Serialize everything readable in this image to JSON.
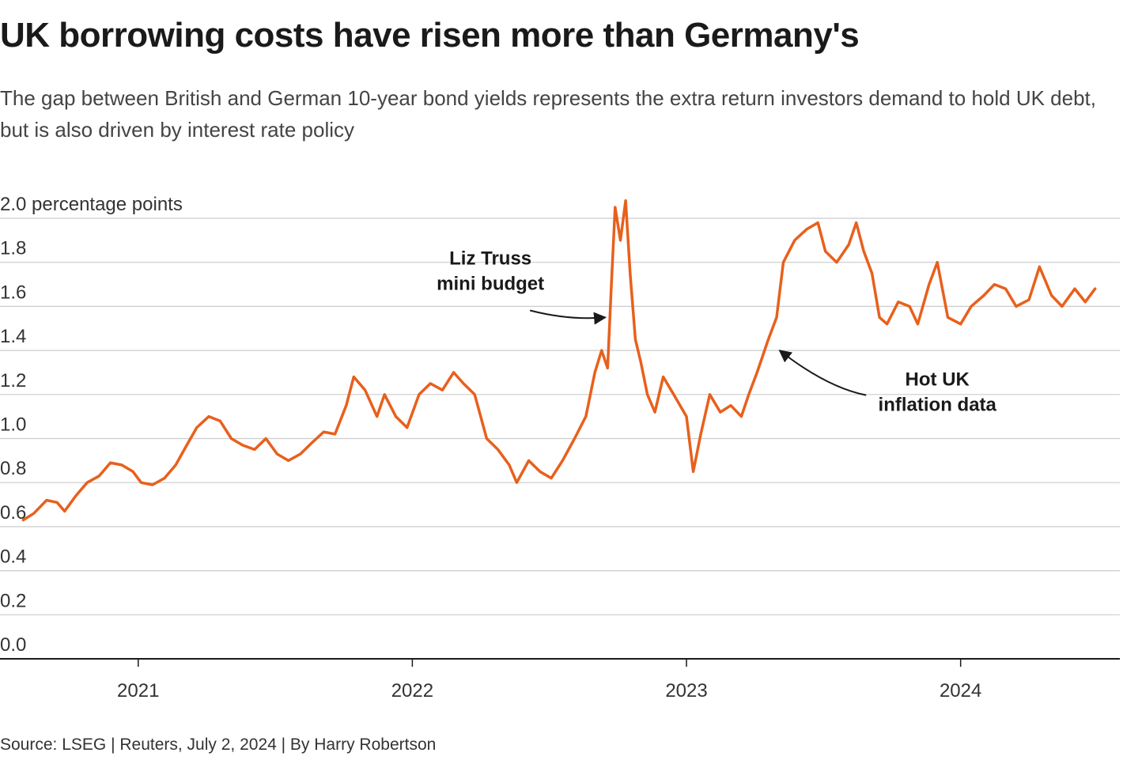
{
  "header": {
    "title": "UK borrowing costs have risen more than Germany's",
    "subtitle": "The gap between British and German 10-year bond yields represents the extra return investors demand to hold UK debt, but is also driven by interest rate policy"
  },
  "footer": {
    "source": "Source: LSEG | Reuters, July 2, 2024 | By Harry Robertson"
  },
  "colors": {
    "line": "#e8601c",
    "grid": "#cccccc",
    "axis": "#1a1a1a"
  },
  "chart_data": {
    "type": "line",
    "title": "UK borrowing costs have risen more than Germany's",
    "ylabel": "percentage points",
    "ylim": [
      0,
      2.0
    ],
    "yticks": [
      0,
      0.2,
      0.4,
      0.6,
      0.8,
      1.0,
      1.2,
      1.4,
      1.6,
      1.8,
      2.0
    ],
    "ytick_labels": [
      "0.0",
      "0.2",
      "0.4",
      "0.6",
      "0.8",
      "1.0",
      "1.2",
      "1.4",
      "1.6",
      "1.8",
      "2.0 percentage points"
    ],
    "xlim": [
      "2020-07-01",
      "2024-07-31"
    ],
    "xticks": [
      "2021-01-01",
      "2022-01-01",
      "2023-01-01",
      "2024-01-01"
    ],
    "xtick_labels": [
      "2021",
      "2022",
      "2023",
      "2024"
    ],
    "grid": true,
    "series": [
      {
        "name": "",
        "points": [
          [
            "2020-08-01",
            0.63
          ],
          [
            "2020-08-15",
            0.66
          ],
          [
            "2020-09-01",
            0.72
          ],
          [
            "2020-09-15",
            0.71
          ],
          [
            "2020-09-25",
            0.67
          ],
          [
            "2020-10-10",
            0.74
          ],
          [
            "2020-10-25",
            0.8
          ],
          [
            "2020-11-10",
            0.83
          ],
          [
            "2020-11-25",
            0.89
          ],
          [
            "2020-12-10",
            0.88
          ],
          [
            "2020-12-25",
            0.85
          ],
          [
            "2021-01-05",
            0.8
          ],
          [
            "2021-01-20",
            0.79
          ],
          [
            "2021-02-05",
            0.82
          ],
          [
            "2021-02-20",
            0.88
          ],
          [
            "2021-03-05",
            0.96
          ],
          [
            "2021-03-20",
            1.05
          ],
          [
            "2021-04-05",
            1.1
          ],
          [
            "2021-04-20",
            1.08
          ],
          [
            "2021-05-05",
            1.0
          ],
          [
            "2021-05-20",
            0.97
          ],
          [
            "2021-06-05",
            0.95
          ],
          [
            "2021-06-20",
            1.0
          ],
          [
            "2021-07-05",
            0.93
          ],
          [
            "2021-07-20",
            0.9
          ],
          [
            "2021-08-05",
            0.93
          ],
          [
            "2021-08-20",
            0.98
          ],
          [
            "2021-09-05",
            1.03
          ],
          [
            "2021-09-20",
            1.02
          ],
          [
            "2021-10-05",
            1.15
          ],
          [
            "2021-10-15",
            1.28
          ],
          [
            "2021-10-30",
            1.22
          ],
          [
            "2021-11-15",
            1.1
          ],
          [
            "2021-11-25",
            1.2
          ],
          [
            "2021-12-10",
            1.1
          ],
          [
            "2021-12-25",
            1.05
          ],
          [
            "2022-01-10",
            1.2
          ],
          [
            "2022-01-25",
            1.25
          ],
          [
            "2022-02-10",
            1.22
          ],
          [
            "2022-02-25",
            1.3
          ],
          [
            "2022-03-10",
            1.25
          ],
          [
            "2022-03-25",
            1.2
          ],
          [
            "2022-04-10",
            1.0
          ],
          [
            "2022-04-25",
            0.95
          ],
          [
            "2022-05-10",
            0.88
          ],
          [
            "2022-05-20",
            0.8
          ],
          [
            "2022-06-05",
            0.9
          ],
          [
            "2022-06-20",
            0.85
          ],
          [
            "2022-07-05",
            0.82
          ],
          [
            "2022-07-20",
            0.9
          ],
          [
            "2022-08-05",
            1.0
          ],
          [
            "2022-08-20",
            1.1
          ],
          [
            "2022-09-01",
            1.3
          ],
          [
            "2022-09-10",
            1.4
          ],
          [
            "2022-09-18",
            1.32
          ],
          [
            "2022-09-23",
            1.7
          ],
          [
            "2022-09-28",
            2.05
          ],
          [
            "2022-10-05",
            1.9
          ],
          [
            "2022-10-12",
            2.08
          ],
          [
            "2022-10-18",
            1.75
          ],
          [
            "2022-10-25",
            1.45
          ],
          [
            "2022-11-01",
            1.35
          ],
          [
            "2022-11-10",
            1.2
          ],
          [
            "2022-11-20",
            1.12
          ],
          [
            "2022-12-01",
            1.28
          ],
          [
            "2022-12-15",
            1.2
          ],
          [
            "2023-01-01",
            1.1
          ],
          [
            "2023-01-10",
            0.85
          ],
          [
            "2023-01-20",
            1.02
          ],
          [
            "2023-02-01",
            1.2
          ],
          [
            "2023-02-15",
            1.12
          ],
          [
            "2023-03-01",
            1.15
          ],
          [
            "2023-03-15",
            1.1
          ],
          [
            "2023-03-25",
            1.2
          ],
          [
            "2023-04-05",
            1.3
          ],
          [
            "2023-04-20",
            1.45
          ],
          [
            "2023-05-01",
            1.55
          ],
          [
            "2023-05-10",
            1.8
          ],
          [
            "2023-05-25",
            1.9
          ],
          [
            "2023-06-10",
            1.95
          ],
          [
            "2023-06-25",
            1.98
          ],
          [
            "2023-07-05",
            1.85
          ],
          [
            "2023-07-20",
            1.8
          ],
          [
            "2023-08-05",
            1.88
          ],
          [
            "2023-08-15",
            1.98
          ],
          [
            "2023-08-25",
            1.85
          ],
          [
            "2023-09-05",
            1.75
          ],
          [
            "2023-09-15",
            1.55
          ],
          [
            "2023-09-25",
            1.52
          ],
          [
            "2023-10-10",
            1.62
          ],
          [
            "2023-10-25",
            1.6
          ],
          [
            "2023-11-05",
            1.52
          ],
          [
            "2023-11-20",
            1.7
          ],
          [
            "2023-12-01",
            1.8
          ],
          [
            "2023-12-15",
            1.55
          ],
          [
            "2024-01-01",
            1.52
          ],
          [
            "2024-01-15",
            1.6
          ],
          [
            "2024-02-01",
            1.65
          ],
          [
            "2024-02-15",
            1.7
          ],
          [
            "2024-03-01",
            1.68
          ],
          [
            "2024-03-15",
            1.6
          ],
          [
            "2024-04-01",
            1.63
          ],
          [
            "2024-04-15",
            1.78
          ],
          [
            "2024-05-01",
            1.65
          ],
          [
            "2024-05-15",
            1.6
          ],
          [
            "2024-06-01",
            1.68
          ],
          [
            "2024-06-15",
            1.62
          ],
          [
            "2024-06-28",
            1.68
          ]
        ]
      }
    ],
    "annotations": [
      {
        "lines": [
          "Liz Truss",
          "mini budget"
        ],
        "x": "2022-04-15",
        "y": 1.79,
        "target_x": "2022-09-15",
        "target_y": 1.55
      },
      {
        "lines": [
          "Hot UK",
          "inflation data"
        ],
        "x": "2023-12-01",
        "y": 1.24,
        "target_x": "2023-05-05",
        "target_y": 1.4
      }
    ]
  }
}
